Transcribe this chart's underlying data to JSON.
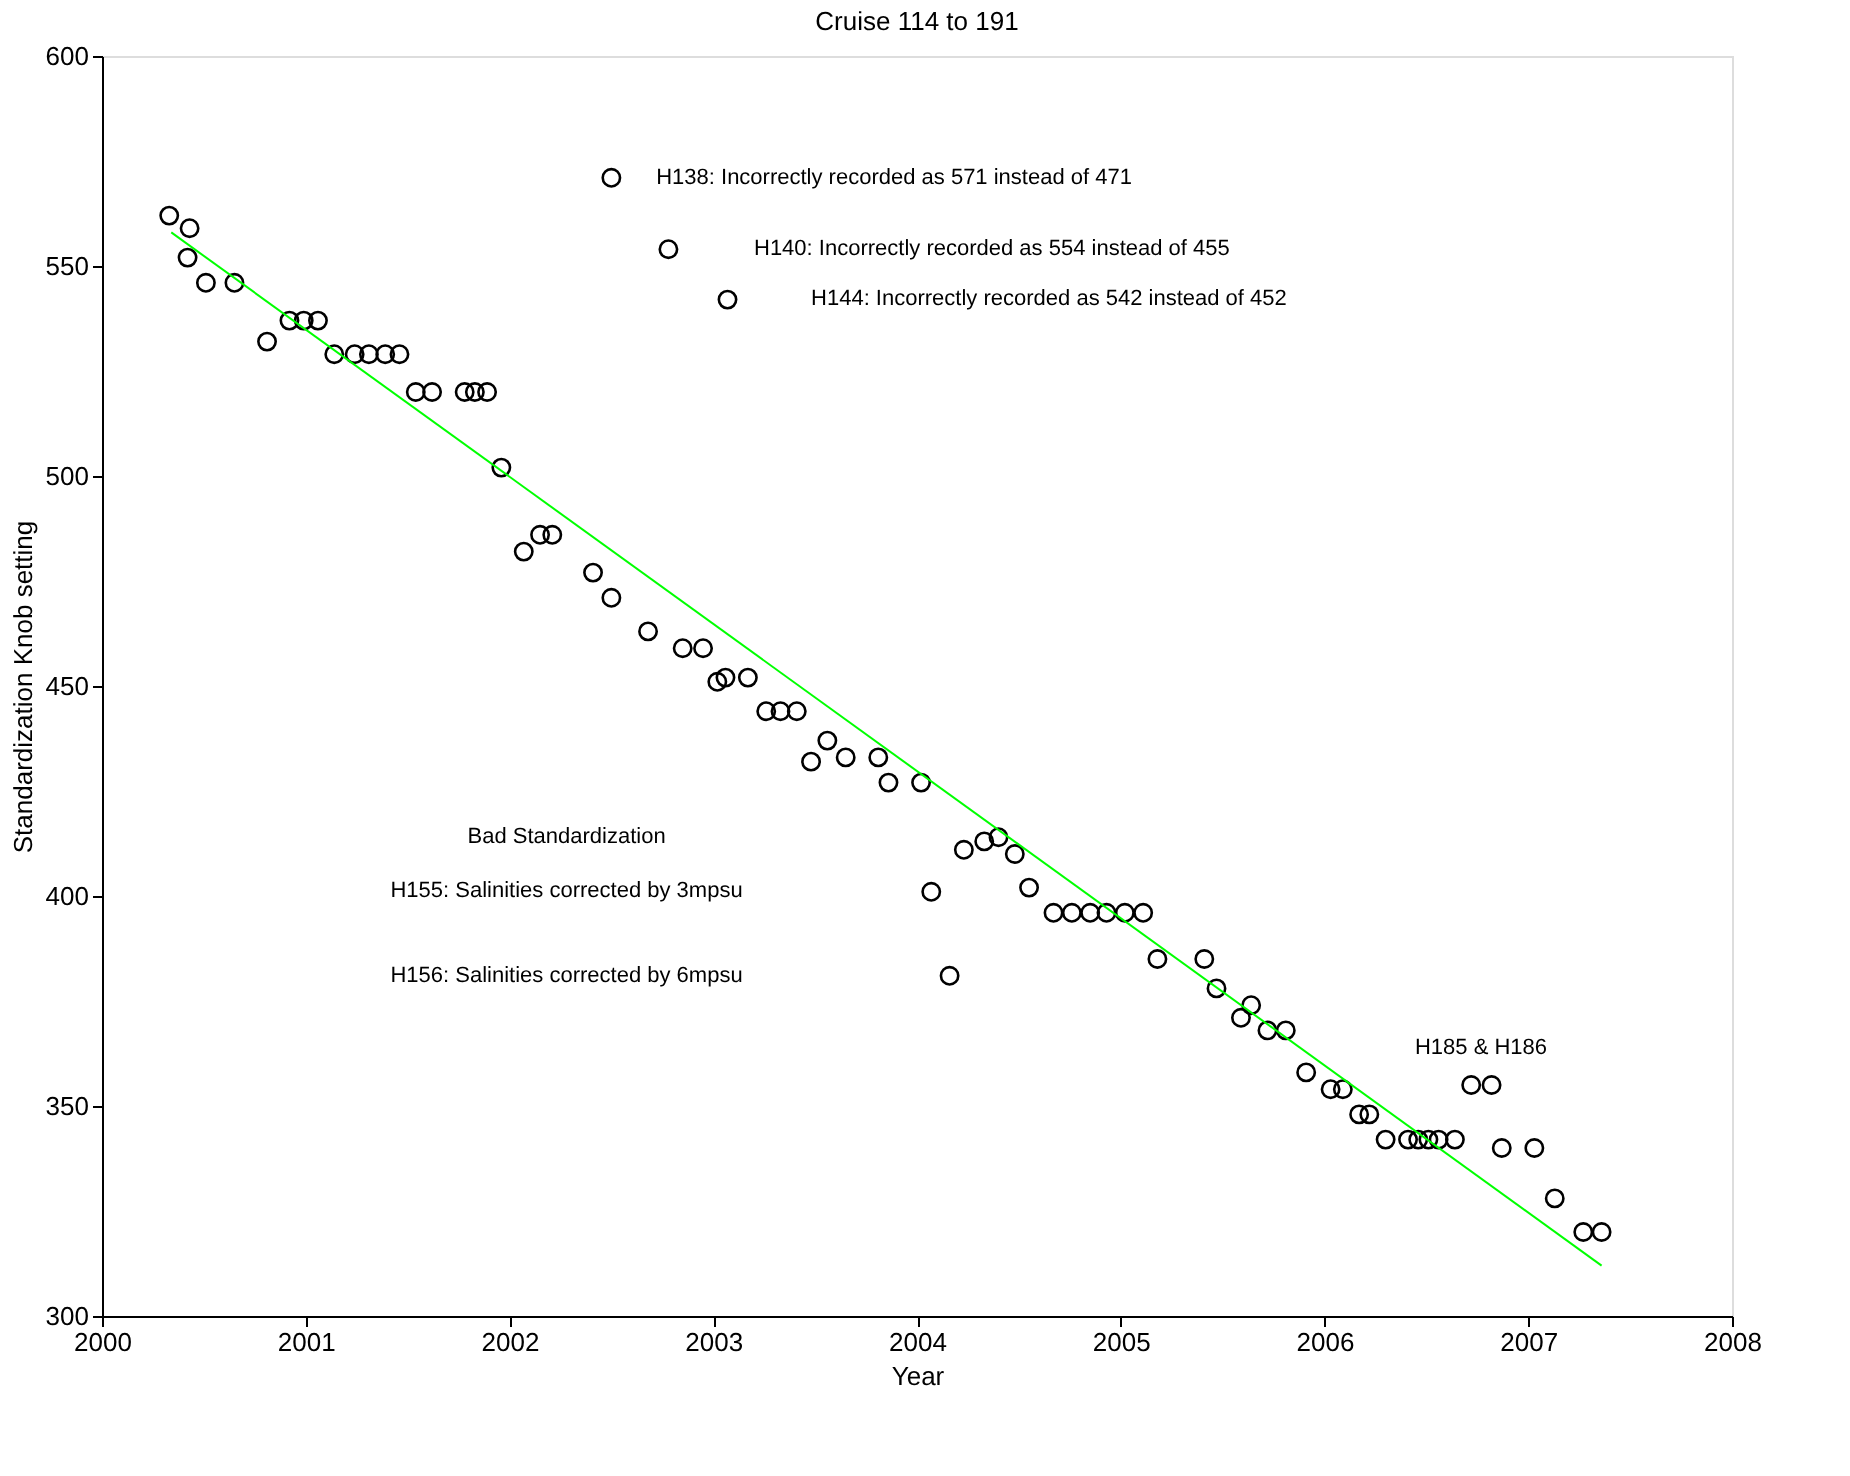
{
  "chart_data": {
    "type": "scatter",
    "title": "Cruise 114 to 191",
    "xlabel": "Year",
    "ylabel": "Standardization Knob setting",
    "xlim": [
      2000,
      2008
    ],
    "xticks": [
      2000,
      2001,
      2002,
      2003,
      2004,
      2005,
      2006,
      2007,
      2008
    ],
    "ylim": [
      300,
      600
    ],
    "yticks": [
      300,
      350,
      400,
      450,
      500,
      550,
      600
    ],
    "grid": false,
    "series": [
      {
        "marker": "circle",
        "color": "#000000",
        "x": [
          2000.33,
          2000.43,
          2000.42,
          2000.51,
          2000.65,
          2000.81,
          2000.92,
          2000.99,
          2001.06,
          2001.14,
          2001.24,
          2001.31,
          2001.39,
          2001.46,
          2001.54,
          2001.62,
          2001.78,
          2001.83,
          2001.89,
          2001.96,
          2002.07,
          2002.15,
          2002.21,
          2002.41,
          2002.5,
          2002.68,
          2002.85,
          2002.95,
          2003.02,
          2003.06,
          2003.17,
          2003.26,
          2003.33,
          2003.41,
          2003.48,
          2003.56,
          2003.65,
          2003.81,
          2003.86,
          2004.02,
          2004.07,
          2004.16,
          2004.23,
          2004.33,
          2004.4,
          2004.48,
          2004.55,
          2004.67,
          2004.76,
          2004.85,
          2004.93,
          2005.02,
          2005.11,
          2005.18,
          2005.41,
          2005.47,
          2005.59,
          2005.64,
          2005.72,
          2005.81,
          2005.91,
          2006.03,
          2006.09,
          2006.17,
          2006.22,
          2006.3,
          2006.41,
          2006.46,
          2006.51,
          2006.56,
          2006.64,
          2006.72,
          2006.82,
          2006.87,
          2007.03,
          2007.13,
          2007.27,
          2007.36,
          2002.5,
          2002.78,
          2003.07
        ],
        "values": [
          562,
          559,
          552,
          546,
          546,
          532,
          537,
          537,
          537,
          529,
          529,
          529,
          529,
          529,
          520,
          520,
          520,
          520,
          520,
          502,
          482,
          486,
          486,
          477,
          471,
          463,
          459,
          459,
          451,
          452,
          452,
          444,
          444,
          444,
          432,
          437,
          433,
          433,
          427,
          427,
          401,
          381,
          411,
          413,
          414,
          410,
          402,
          396,
          396,
          396,
          396,
          396,
          396,
          385,
          385,
          378,
          371,
          374,
          368,
          368,
          358,
          354,
          354,
          348,
          348,
          342,
          342,
          342,
          342,
          342,
          342,
          355,
          355,
          340,
          340,
          328,
          320,
          320,
          571,
          554,
          542
        ]
      },
      {
        "type": "line",
        "color": "#00ff00",
        "x": [
          2000.34,
          2007.36
        ],
        "values": [
          558,
          312
        ]
      }
    ],
    "annotations": [
      "H138: Incorrectly recorded as 571 instead of 471",
      "H140: Incorrectly recorded as 554 instead of 455",
      "H144: Incorrectly recorded as 542 instead of 452",
      "Bad Standardization",
      "H155: Salinities corrected by 3mpsu",
      "H156: Salinities corrected by 6mpsu",
      "H185 & H186"
    ]
  }
}
